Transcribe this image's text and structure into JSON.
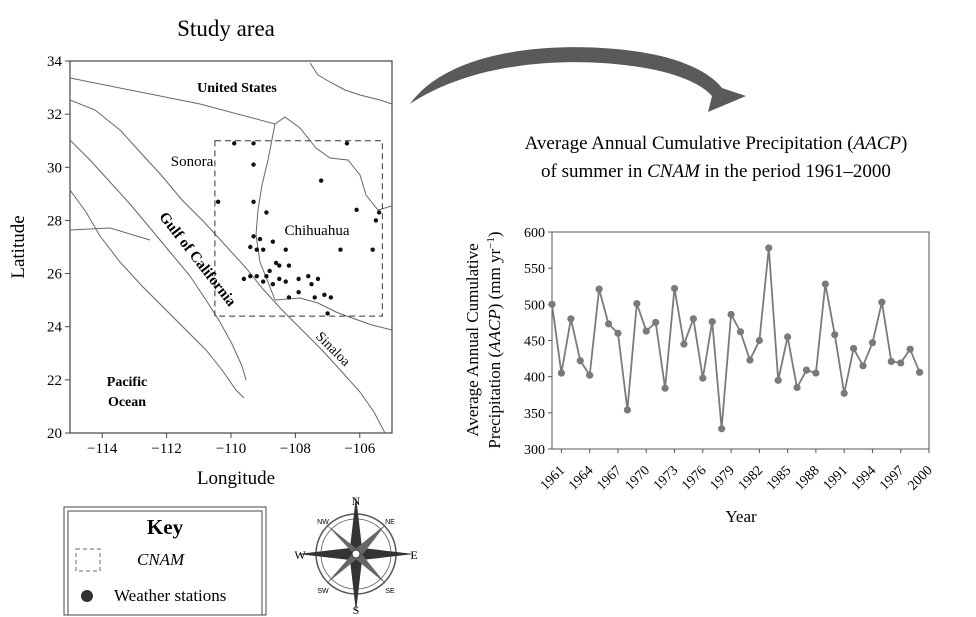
{
  "study_area": {
    "title": "Study area",
    "xlabel": "Longitude",
    "ylabel": "Latitude",
    "x_ticks": [
      -114,
      -112,
      -110,
      -108,
      -106
    ],
    "y_ticks": [
      20,
      22,
      24,
      26,
      28,
      30,
      32,
      34
    ],
    "x_tick_labels": [
      "−114",
      "−112",
      "−110",
      "−108",
      "−106"
    ],
    "y_tick_labels": [
      "20",
      "22",
      "24",
      "26",
      "28",
      "30",
      "32",
      "34"
    ],
    "xlim": [
      -115,
      -105
    ],
    "ylim": [
      20,
      34
    ],
    "labels": {
      "us": "United States",
      "sonora": "Sonora",
      "chihuahua": "Chihuahua",
      "gulf": "Gulf of California",
      "sinaloa": "Sinaloa",
      "pacific_1": "Pacific",
      "pacific_2": "Ocean"
    },
    "cnam_box": {
      "lon": [
        -110.5,
        -105.3
      ],
      "lat": [
        24.4,
        31.0
      ]
    },
    "stations": [
      [
        -109.9,
        30.9
      ],
      [
        -109.3,
        30.9
      ],
      [
        -106.4,
        30.9
      ],
      [
        -109.3,
        30.1
      ],
      [
        -107.2,
        29.5
      ],
      [
        -109.3,
        28.7
      ],
      [
        -110.4,
        28.7
      ],
      [
        -108.9,
        28.3
      ],
      [
        -106.1,
        28.4
      ],
      [
        -105.4,
        28.3
      ],
      [
        -105.5,
        28.0
      ],
      [
        -109.3,
        27.4
      ],
      [
        -109.1,
        27.3
      ],
      [
        -108.7,
        27.2
      ],
      [
        -109.4,
        27.0
      ],
      [
        -109.2,
        26.9
      ],
      [
        -109.0,
        26.9
      ],
      [
        -108.3,
        26.9
      ],
      [
        -108.6,
        26.4
      ],
      [
        -108.5,
        26.3
      ],
      [
        -108.2,
        26.3
      ],
      [
        -109.2,
        25.9
      ],
      [
        -108.9,
        25.9
      ],
      [
        -108.5,
        25.8
      ],
      [
        -108.3,
        25.7
      ],
      [
        -109.4,
        25.9
      ],
      [
        -109.0,
        25.7
      ],
      [
        -108.7,
        25.6
      ],
      [
        -107.9,
        25.8
      ],
      [
        -107.6,
        25.9
      ],
      [
        -107.3,
        25.8
      ],
      [
        -107.5,
        25.6
      ],
      [
        -107.9,
        25.3
      ],
      [
        -107.4,
        25.1
      ],
      [
        -107.1,
        25.2
      ],
      [
        -106.9,
        25.1
      ],
      [
        -108.2,
        25.1
      ],
      [
        -107.0,
        24.5
      ],
      [
        -106.6,
        26.9
      ],
      [
        -105.6,
        26.9
      ],
      [
        -109.6,
        25.8
      ],
      [
        -108.8,
        26.1
      ]
    ]
  },
  "arrow_color": "#5a5a5a",
  "key": {
    "title": "Key",
    "cnam_label": "CNAM",
    "stations_label": "Weather stations"
  },
  "compass": {
    "n": "N",
    "s": "S",
    "e": "E",
    "w": "W",
    "ne": "NE",
    "nw": "NW",
    "se": "SE",
    "sw": "SW"
  },
  "chart_data": {
    "type": "line",
    "title_line1_prefix": "Average Annual Cumulative Precipitation (",
    "title_line1_em": "AACP",
    "title_line1_suffix": ")",
    "title_line2_prefix": "of summer in ",
    "title_line2_em": "CNAM",
    "title_line2_suffix": " in the period 1961–2000",
    "ylabel_line1": "Average Annual Cumulative",
    "ylabel_line2_prefix": "Precipitation (",
    "ylabel_line2_em": "AACP",
    "ylabel_line2_suffix": ") (mm yr",
    "ylabel_line2_sup": "−1",
    "ylabel_line2_end": ")",
    "xlabel": "Year",
    "xlim": [
      1960,
      2000
    ],
    "ylim": [
      300,
      600
    ],
    "y_ticks": [
      300,
      350,
      400,
      450,
      500,
      550,
      600
    ],
    "x_ticks": [
      1961,
      1964,
      1967,
      1970,
      1973,
      1976,
      1979,
      1982,
      1985,
      1988,
      1991,
      1994,
      1997,
      2000
    ],
    "line_color": "#7a7a7a",
    "x": [
      1960,
      1961,
      1962,
      1963,
      1964,
      1965,
      1966,
      1967,
      1968,
      1969,
      1970,
      1971,
      1972,
      1973,
      1974,
      1975,
      1976,
      1977,
      1978,
      1979,
      1980,
      1981,
      1982,
      1983,
      1984,
      1985,
      1986,
      1987,
      1988,
      1989,
      1990,
      1991,
      1992,
      1993,
      1994,
      1995,
      1996,
      1997,
      1998,
      1999
    ],
    "values": [
      500,
      405,
      480,
      422,
      402,
      521,
      473,
      460,
      354,
      501,
      463,
      475,
      384,
      522,
      445,
      480,
      398,
      476,
      328,
      486,
      462,
      423,
      450,
      578,
      395,
      455,
      385,
      409,
      405,
      528,
      458,
      377,
      439,
      415,
      447,
      503,
      421,
      419,
      438,
      406
    ]
  }
}
